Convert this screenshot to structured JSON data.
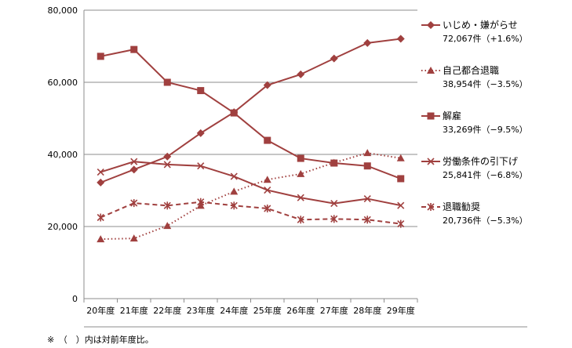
{
  "chart_data": {
    "type": "line",
    "categories": [
      "20年度",
      "21年度",
      "22年度",
      "23年度",
      "24年度",
      "25年度",
      "26年度",
      "27年度",
      "28年度",
      "29年度"
    ],
    "ylim": [
      0,
      80000
    ],
    "yticks": [
      0,
      20000,
      40000,
      60000,
      80000
    ],
    "ytick_labels": [
      "0",
      "20,000",
      "40,000",
      "60,000",
      "80,000"
    ],
    "grid": "horizontal",
    "legend_position": "right",
    "color": "#a0403f",
    "series": [
      {
        "name": "いじめ・嫌がらせ",
        "value_label": "72,067件（+1.6%）",
        "marker": "diamond",
        "line": "solid",
        "values": [
          32200,
          35800,
          39400,
          45900,
          51700,
          59200,
          62200,
          66600,
          70900,
          72067
        ]
      },
      {
        "name": "自己都合退職",
        "value_label": "38,954件（−3.5%）",
        "marker": "triangle",
        "line": "dotted",
        "values": [
          16500,
          16700,
          20200,
          25800,
          29700,
          33000,
          34600,
          37700,
          40400,
          38954
        ]
      },
      {
        "name": "解雇",
        "value_label": "33,269件（−9.5%）",
        "marker": "square",
        "line": "solid",
        "values": [
          67200,
          69100,
          60000,
          57700,
          51500,
          43900,
          38900,
          37600,
          36800,
          33269
        ]
      },
      {
        "name": "労働条件の引下げ",
        "value_label": "25,841件（−6.8%）",
        "marker": "x",
        "line": "solid",
        "values": [
          35100,
          38000,
          37200,
          36800,
          33900,
          30100,
          28000,
          26400,
          27700,
          25841
        ]
      },
      {
        "name": "退職勧奨",
        "value_label": "20,736件（−5.3%）",
        "marker": "asterisk",
        "line": "dashed",
        "values": [
          22500,
          26500,
          25800,
          26800,
          25800,
          25000,
          21900,
          22100,
          21900,
          20736
        ]
      }
    ]
  },
  "footnote": "※　（　）内は対前年度比。"
}
